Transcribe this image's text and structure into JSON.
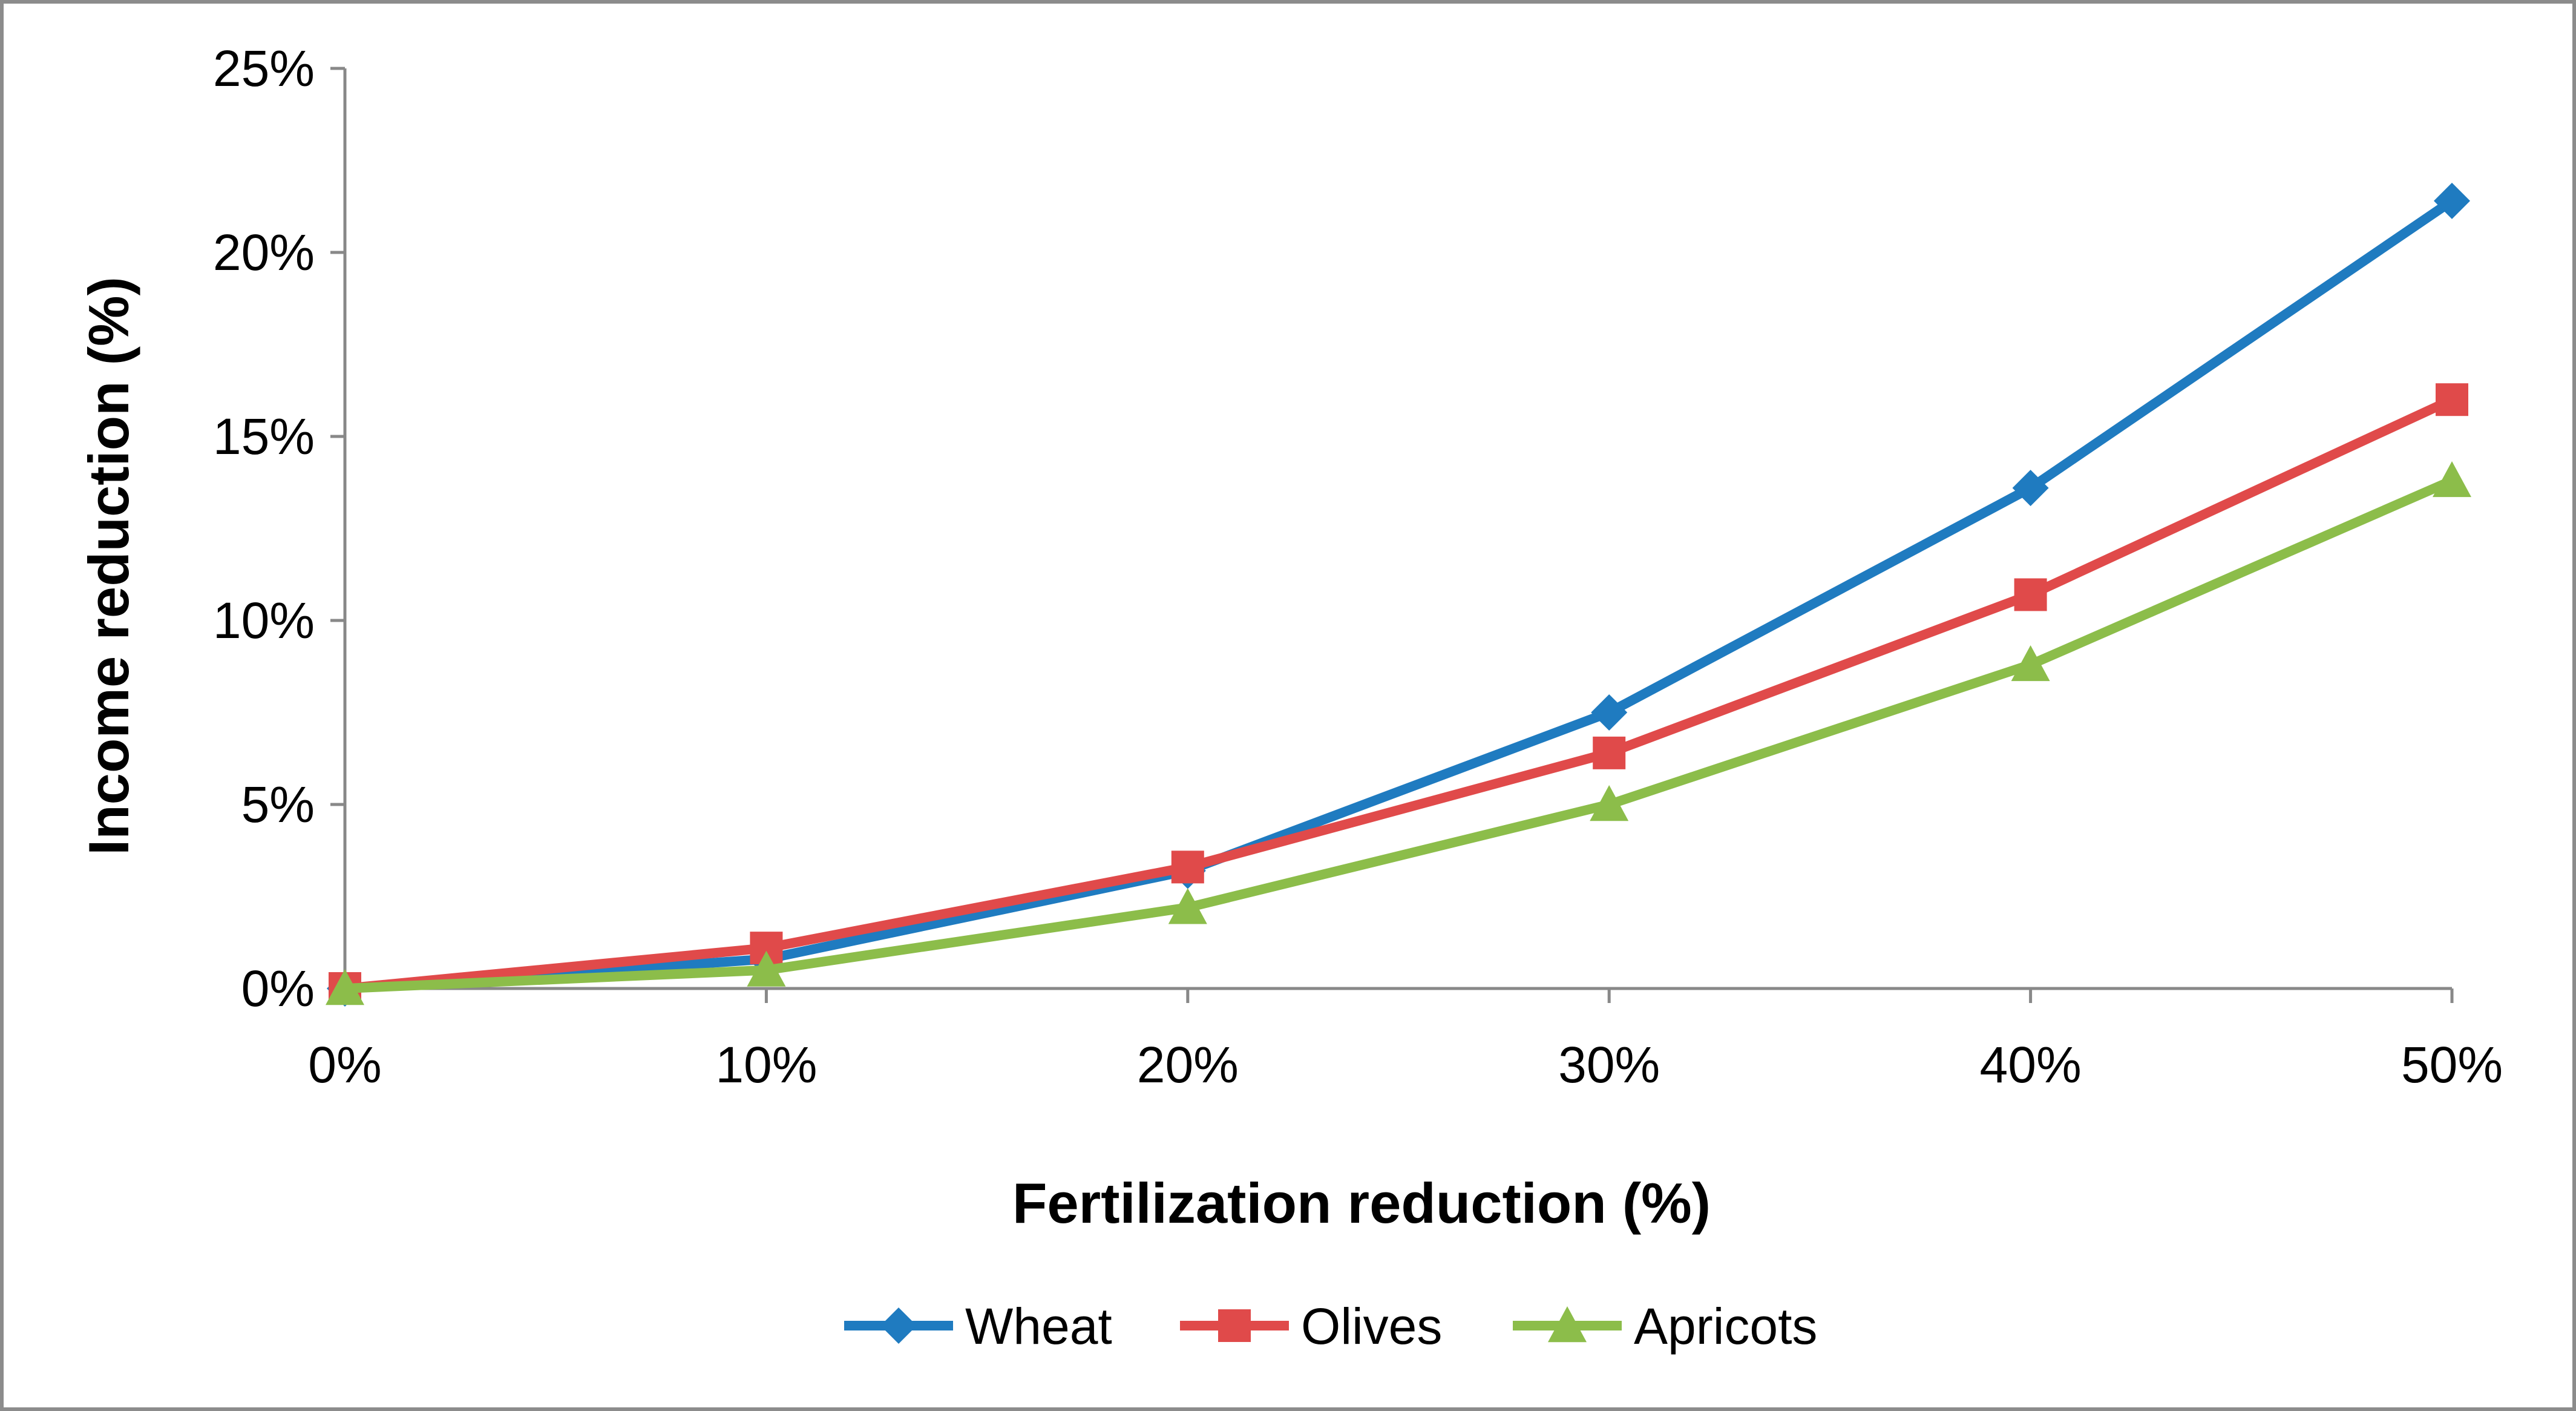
{
  "chart_data": {
    "type": "line",
    "title": "",
    "xlabel": "Fertilization reduction (%)",
    "ylabel": "Income reduction (%)",
    "x": [
      0,
      10,
      20,
      30,
      40,
      50
    ],
    "x_tick_labels": [
      "0%",
      "10%",
      "20%",
      "30%",
      "40%",
      "50%"
    ],
    "ylim": [
      0,
      25
    ],
    "y_ticks": [
      0,
      5,
      10,
      15,
      20,
      25
    ],
    "y_tick_labels": [
      "0%",
      "5%",
      "10%",
      "15%",
      "20%",
      "25%"
    ],
    "grid": false,
    "legend_position": "bottom",
    "series": [
      {
        "name": "Wheat",
        "color": "#1f7bc0",
        "marker": "diamond",
        "values": [
          0.0,
          0.8,
          3.2,
          7.5,
          13.6,
          21.4
        ]
      },
      {
        "name": "Olives",
        "color": "#e04a4a",
        "marker": "square",
        "values": [
          0.0,
          1.1,
          3.3,
          6.4,
          10.7,
          16.0
        ]
      },
      {
        "name": "Apricots",
        "color": "#8cbd4a",
        "marker": "triangle",
        "values": [
          0.0,
          0.5,
          2.2,
          5.0,
          8.8,
          13.8
        ]
      }
    ]
  }
}
